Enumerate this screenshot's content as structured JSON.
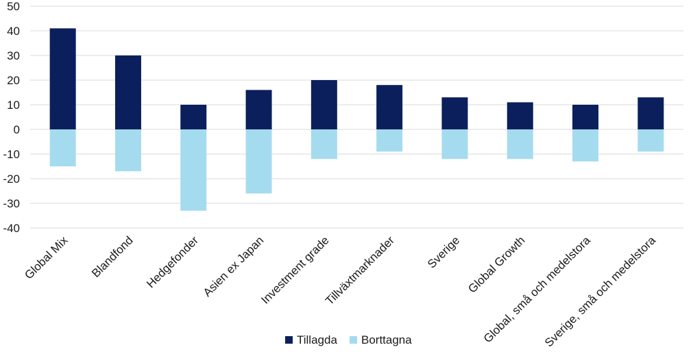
{
  "chart_data": {
    "type": "bar",
    "stacked": true,
    "categories": [
      "Global Mix",
      "Blandfond",
      "Hedgefonder",
      "Asien ex Japan",
      "Investment grade",
      "Tillväxtmarknader",
      "Sverige",
      "Global Growth",
      "Global, små och medelstora",
      "Sverige, små och medelstora"
    ],
    "series": [
      {
        "name": "Tillagda",
        "color": "#0b1f5c",
        "values": [
          41,
          30,
          10,
          16,
          20,
          18,
          13,
          11,
          10,
          13
        ]
      },
      {
        "name": "Borttagna",
        "color": "#a5dbef",
        "values": [
          -15,
          -17,
          -33,
          -26,
          -12,
          -9,
          -12,
          -12,
          -13,
          -9
        ]
      }
    ],
    "ylim": [
      -40,
      50
    ],
    "yticks": [
      50,
      40,
      30,
      20,
      10,
      0,
      -10,
      -20,
      -30,
      -40
    ],
    "grid": true,
    "legend_position": "bottom-center",
    "title": "",
    "xlabel": "",
    "ylabel": ""
  }
}
